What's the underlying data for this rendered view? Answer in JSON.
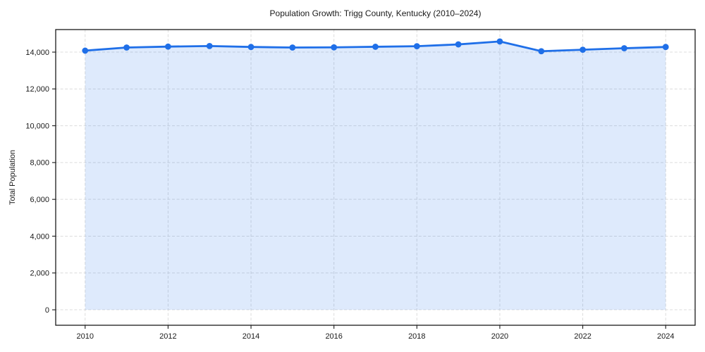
{
  "chart_data": {
    "type": "line",
    "title": "Population Growth: Trigg County, Kentucky (2010–2024)",
    "xlabel": "",
    "ylabel": "Total Population",
    "series": [
      {
        "name": "Total Population",
        "x": [
          2010,
          2011,
          2012,
          2013,
          2014,
          2015,
          2016,
          2017,
          2018,
          2019,
          2020,
          2021,
          2022,
          2023,
          2024
        ],
        "values": [
          14080,
          14250,
          14300,
          14330,
          14280,
          14250,
          14260,
          14290,
          14320,
          14420,
          14580,
          14050,
          14130,
          14210,
          14280
        ]
      }
    ],
    "x_ticks": [
      {
        "value": 2010,
        "label": "2010"
      },
      {
        "value": 2012,
        "label": "2012"
      },
      {
        "value": 2014,
        "label": "2014"
      },
      {
        "value": 2016,
        "label": "2016"
      },
      {
        "value": 2018,
        "label": "2018"
      },
      {
        "value": 2020,
        "label": "2020"
      },
      {
        "value": 2022,
        "label": "2022"
      },
      {
        "value": 2024,
        "label": "2024"
      }
    ],
    "y_ticks": [
      {
        "value": 0,
        "label": "0"
      },
      {
        "value": 2000,
        "label": "2,000"
      },
      {
        "value": 4000,
        "label": "4,000"
      },
      {
        "value": 6000,
        "label": "6,000"
      },
      {
        "value": 8000,
        "label": "8,000"
      },
      {
        "value": 10000,
        "label": "10,000"
      },
      {
        "value": 12000,
        "label": "12,000"
      },
      {
        "value": 14000,
        "label": "14,000"
      }
    ],
    "xlim": [
      2009.29,
      2024.71
    ],
    "ylim": [
      -840,
      15225
    ],
    "grid": true,
    "legend": "none",
    "area_baseline": 0,
    "line_color": "#1f6fe8",
    "marker_color": "#1f6fe8",
    "fill_color": "rgba(31, 111, 232, 0.15)",
    "marker": "circle"
  }
}
